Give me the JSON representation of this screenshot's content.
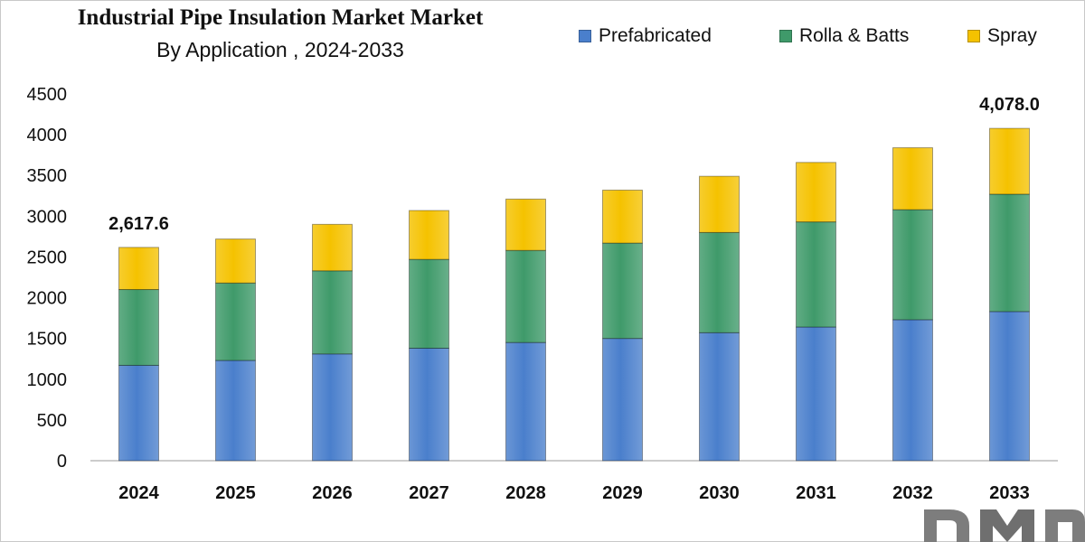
{
  "header": {
    "title": "Industrial Pipe Insulation Market Market",
    "subtitle": "By Application , 2024-2033"
  },
  "chart_data": {
    "type": "bar",
    "stacked": true,
    "title": "Industrial Pipe Insulation Market Market",
    "subtitle": "By Application , 2024-2033",
    "xlabel": "",
    "ylabel": "",
    "categories": [
      "2024",
      "2025",
      "2026",
      "2027",
      "2028",
      "2029",
      "2030",
      "2031",
      "2032",
      "2033"
    ],
    "series": [
      {
        "name": "Prefabricated",
        "color": "#4a7fcc",
        "values": [
          1170,
          1230,
          1310,
          1380,
          1450,
          1500,
          1570,
          1640,
          1730,
          1830
        ]
      },
      {
        "name": "Rolla & Batts",
        "color": "#3f9a6a",
        "values": [
          930,
          950,
          1020,
          1090,
          1130,
          1170,
          1230,
          1290,
          1350,
          1440
        ]
      },
      {
        "name": "Spray",
        "color": "#f5c200",
        "values": [
          517.6,
          540,
          570,
          600,
          630,
          650,
          690,
          730,
          760,
          808
        ]
      }
    ],
    "ylim": [
      0,
      4500
    ],
    "yticks": [
      0,
      500,
      1000,
      1500,
      2000,
      2500,
      3000,
      3500,
      4000,
      4500
    ],
    "grid": false,
    "legend_position": "top-right",
    "annotations": [
      {
        "category": "2024",
        "label": "2,617.6"
      },
      {
        "category": "2033",
        "label": "4,078.0"
      }
    ]
  },
  "logo": {
    "text": "DMR",
    "alt": "DMR logo"
  }
}
